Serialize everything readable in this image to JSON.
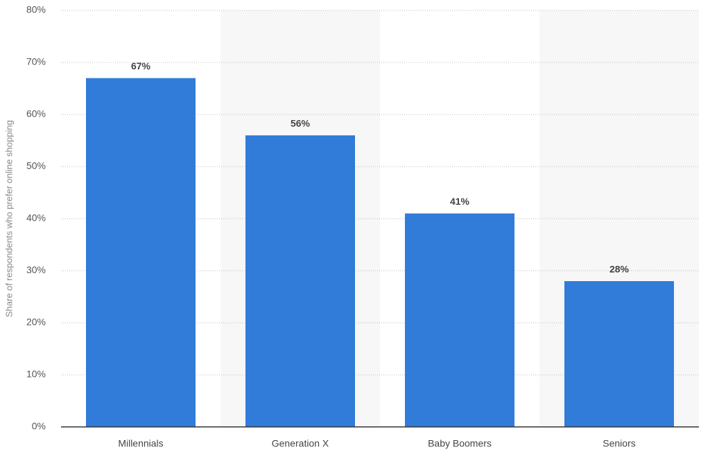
{
  "chart_data": {
    "type": "bar",
    "y_axis_label": "Share of respondents who prefer online shopping",
    "categories": [
      "Millennials",
      "Generation X",
      "Baby Boomers",
      "Seniors"
    ],
    "values": [
      67,
      56,
      41,
      28
    ],
    "value_labels": [
      "67%",
      "56%",
      "41%",
      "28%"
    ],
    "color": "#317bd9",
    "ylim": [
      0,
      80
    ],
    "yticks": [
      {
        "value": 0,
        "label": "0%"
      },
      {
        "value": 10,
        "label": "10%"
      },
      {
        "value": 20,
        "label": "20%"
      },
      {
        "value": 30,
        "label": "30%"
      },
      {
        "value": 40,
        "label": "40%"
      },
      {
        "value": 50,
        "label": "50%"
      },
      {
        "value": 60,
        "label": "60%"
      },
      {
        "value": 70,
        "label": "70%"
      },
      {
        "value": 80,
        "label": "80%"
      }
    ],
    "grid": true
  }
}
